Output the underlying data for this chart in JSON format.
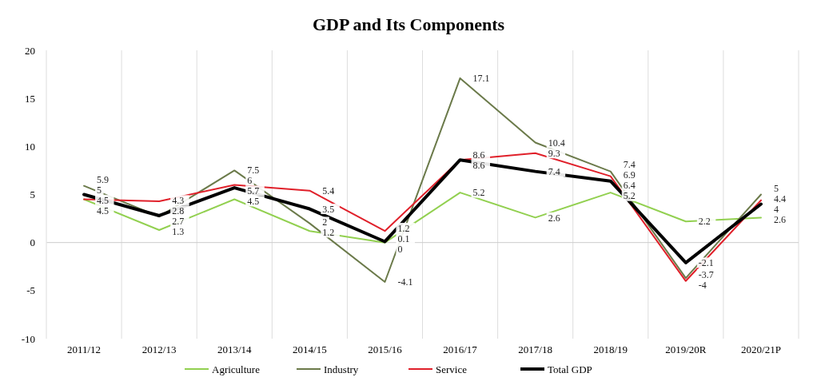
{
  "chart_data": {
    "type": "line",
    "title": "GDP and Its Components",
    "categories": [
      "2011/12",
      "2012/13",
      "2013/14",
      "2014/15",
      "2015/16",
      "2016/17",
      "2017/18",
      "2018/19",
      "2019/20R",
      "2020/21P"
    ],
    "series": [
      {
        "name": "Agriculture",
        "color": "#92d050",
        "values": [
          4.5,
          1.3,
          4.5,
          1.2,
          0.0,
          5.2,
          2.6,
          5.2,
          2.2,
          2.6
        ]
      },
      {
        "name": "Industry",
        "color": "#6b7a4a",
        "values": [
          5.9,
          2.7,
          7.5,
          2,
          -4.1,
          17.1,
          10.4,
          7.4,
          -3.7,
          5
        ]
      },
      {
        "name": "Service",
        "color": "#e0202a",
        "values": [
          4.5,
          4.3,
          6,
          5.4,
          1.2,
          8.6,
          9.3,
          6.9,
          -4.0,
          4.4
        ]
      },
      {
        "name": "Total GDP",
        "color": "#000000",
        "values": [
          5.0,
          2.8,
          5.7,
          3.5,
          0.1,
          8.6,
          7.4,
          6.4,
          -2.1,
          4.0
        ]
      }
    ],
    "ylim": [
      -10,
      20
    ],
    "yticks": [
      -10,
      -5,
      0,
      5,
      10,
      15,
      20
    ],
    "grid": "x",
    "legend": "bottom",
    "data_labels": true,
    "marker": "none",
    "line_style": "solid"
  }
}
